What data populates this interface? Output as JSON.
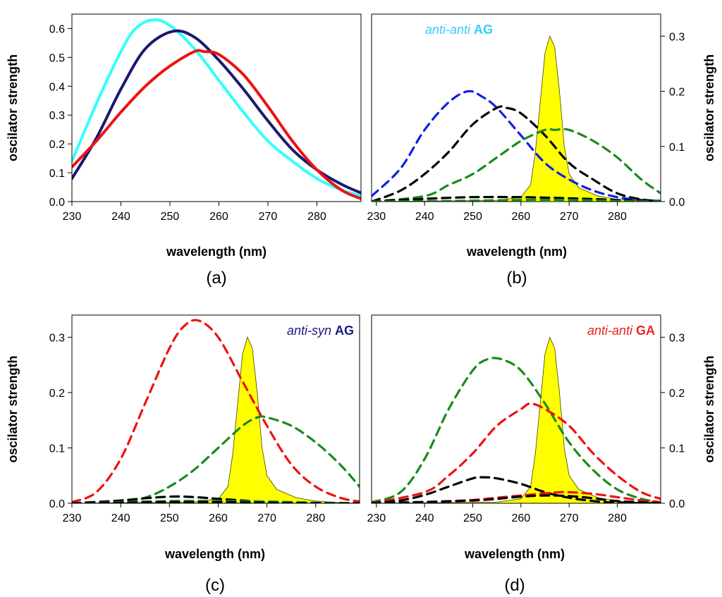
{
  "figure": {
    "panels": [
      {
        "id": "a",
        "label": "(a)",
        "xlabel": "wavelength (nm)",
        "ylabel": "oscilator strength",
        "y_axis_side": "left"
      },
      {
        "id": "b",
        "label": "(b)",
        "xlabel": "wavelength (nm)",
        "ylabel": "oscilator strength",
        "y_axis_side": "right",
        "annotation": {
          "italic": "anti-anti",
          "bold": "AG",
          "color": "#33ccff"
        }
      },
      {
        "id": "c",
        "label": "(c)",
        "xlabel": "wavelength (nm)",
        "ylabel": "oscilator strength",
        "y_axis_side": "left",
        "annotation": {
          "italic": "anti-syn",
          "bold": "AG",
          "color": "#1a1a80"
        }
      },
      {
        "id": "d",
        "label": "(d)",
        "xlabel": "wavelength (nm)",
        "ylabel": "oscilator strength",
        "y_axis_side": "right",
        "annotation": {
          "italic": "anti-anti",
          "bold": "GA",
          "color": "#ee2222"
        }
      }
    ]
  },
  "chart_data": [
    {
      "type": "line",
      "panel": "a",
      "xlabel": "wavelength (nm)",
      "ylabel": "oscilator strength",
      "xlim": [
        230,
        289
      ],
      "ylim": [
        0,
        0.65
      ],
      "xticks": [
        230,
        240,
        250,
        260,
        270,
        280
      ],
      "yticks": [
        "0.0",
        "0.1",
        "0.2",
        "0.3",
        "0.4",
        "0.5",
        "0.6"
      ],
      "series": [
        {
          "color": "#33ffff",
          "style": "solid",
          "x": [
            230,
            235,
            240,
            243,
            246.5,
            250,
            255,
            260,
            265,
            270,
            275,
            280,
            285,
            289
          ],
          "y": [
            0.14,
            0.34,
            0.52,
            0.6,
            0.63,
            0.61,
            0.53,
            0.42,
            0.31,
            0.21,
            0.14,
            0.08,
            0.04,
            0.02
          ]
        },
        {
          "color": "#1a1a6e",
          "style": "solid",
          "x": [
            230,
            235,
            240,
            245,
            250.5,
            255,
            260,
            265,
            270,
            275,
            280,
            285,
            289
          ],
          "y": [
            0.08,
            0.22,
            0.39,
            0.53,
            0.59,
            0.57,
            0.49,
            0.39,
            0.28,
            0.18,
            0.11,
            0.06,
            0.03
          ]
        },
        {
          "color": "#ee1111",
          "style": "solid",
          "x": [
            230,
            235,
            240,
            245,
            250,
            255,
            257,
            260,
            265,
            270,
            275,
            280,
            285,
            289
          ],
          "y": [
            0.12,
            0.21,
            0.31,
            0.4,
            0.47,
            0.52,
            0.52,
            0.51,
            0.44,
            0.33,
            0.21,
            0.11,
            0.04,
            0.01
          ]
        }
      ]
    },
    {
      "type": "line",
      "panel": "b",
      "xlabel": "wavelength (nm)",
      "ylabel": "oscilator strength",
      "xlim": [
        229,
        289
      ],
      "ylim": [
        0,
        0.34
      ],
      "xticks": [
        230,
        240,
        250,
        260,
        270,
        280
      ],
      "yticks": [
        "0.0",
        "0.1",
        "0.2",
        "0.3"
      ],
      "spectrum": {
        "color": "#ffff00",
        "x": [
          229,
          255,
          260,
          262,
          263,
          264,
          265,
          266,
          267,
          268,
          269,
          270,
          272,
          276,
          280,
          285,
          289
        ],
        "y": [
          0,
          0.002,
          0.008,
          0.03,
          0.09,
          0.18,
          0.27,
          0.3,
          0.28,
          0.2,
          0.1,
          0.05,
          0.025,
          0.01,
          0.004,
          0.001,
          0
        ]
      },
      "series": [
        {
          "color": "#1122dd",
          "style": "dashed",
          "x": [
            229,
            235,
            240,
            245,
            249,
            252,
            255,
            260,
            265,
            270,
            275,
            280,
            285,
            289
          ],
          "y": [
            0.01,
            0.06,
            0.13,
            0.18,
            0.2,
            0.19,
            0.17,
            0.12,
            0.07,
            0.04,
            0.02,
            0.008,
            0.003,
            0.001
          ]
        },
        {
          "color": "#000000",
          "style": "dashed",
          "x": [
            229,
            235,
            240,
            245,
            250,
            255,
            257,
            260,
            265,
            270,
            275,
            280,
            285,
            289
          ],
          "y": [
            0.0,
            0.02,
            0.05,
            0.09,
            0.14,
            0.17,
            0.17,
            0.16,
            0.12,
            0.07,
            0.04,
            0.015,
            0.004,
            0.001
          ]
        },
        {
          "color": "#1a8a1a",
          "style": "dashed",
          "x": [
            229,
            240,
            245,
            250,
            255,
            260,
            265,
            267,
            270,
            275,
            280,
            285,
            289
          ],
          "y": [
            0.0,
            0.01,
            0.03,
            0.05,
            0.08,
            0.11,
            0.13,
            0.13,
            0.13,
            0.11,
            0.08,
            0.04,
            0.015
          ]
        },
        {
          "color": "#000000",
          "style": "dashed",
          "x": [
            229,
            240,
            250,
            260,
            270,
            280,
            289
          ],
          "y": [
            0.0,
            0.005,
            0.008,
            0.008,
            0.006,
            0.003,
            0.0
          ]
        },
        {
          "color": "#1a8a1a",
          "style": "dashed",
          "x": [
            229,
            245,
            260,
            270,
            280,
            289
          ],
          "y": [
            0.0,
            0.001,
            0.003,
            0.003,
            0.001,
            0.0
          ]
        }
      ]
    },
    {
      "type": "line",
      "panel": "c",
      "xlabel": "wavelength (nm)",
      "ylabel": "oscilator strength",
      "xlim": [
        230,
        289
      ],
      "ylim": [
        0,
        0.34
      ],
      "xticks": [
        230,
        240,
        250,
        260,
        270,
        280
      ],
      "yticks": [
        "0.0",
        "0.1",
        "0.2",
        "0.3"
      ],
      "spectrum": {
        "color": "#ffff00",
        "x": [
          230,
          255,
          260,
          262,
          263,
          264,
          265,
          266,
          267,
          268,
          269,
          270,
          272,
          276,
          280,
          285,
          289
        ],
        "y": [
          0,
          0.002,
          0.008,
          0.03,
          0.09,
          0.18,
          0.27,
          0.3,
          0.28,
          0.2,
          0.1,
          0.05,
          0.025,
          0.01,
          0.004,
          0.001,
          0
        ]
      },
      "series": [
        {
          "color": "#ee1111",
          "style": "dashed",
          "x": [
            230,
            235,
            240,
            245,
            250,
            253,
            256,
            260,
            265,
            270,
            275,
            280,
            285,
            289
          ],
          "y": [
            0.002,
            0.02,
            0.08,
            0.18,
            0.28,
            0.32,
            0.33,
            0.3,
            0.22,
            0.14,
            0.07,
            0.03,
            0.01,
            0.003
          ]
        },
        {
          "color": "#1a8a1a",
          "style": "dashed",
          "x": [
            230,
            240,
            245,
            250,
            255,
            260,
            265,
            268,
            270,
            275,
            280,
            285,
            289
          ],
          "y": [
            0.0,
            0.002,
            0.01,
            0.03,
            0.06,
            0.1,
            0.14,
            0.155,
            0.155,
            0.14,
            0.11,
            0.07,
            0.03
          ]
        },
        {
          "color": "#000000",
          "style": "dashed",
          "x": [
            230,
            240,
            245,
            250,
            253,
            257,
            260,
            265,
            270,
            275,
            280,
            289
          ],
          "y": [
            0.0,
            0.005,
            0.009,
            0.012,
            0.012,
            0.01,
            0.008,
            0.005,
            0.002,
            0.001,
            0.0,
            0.0
          ]
        },
        {
          "color": "#1a8a1a",
          "style": "dashed",
          "x": [
            230,
            240,
            250,
            260,
            270,
            280,
            289
          ],
          "y": [
            0.0,
            0.002,
            0.004,
            0.004,
            0.003,
            0.001,
            0.0
          ]
        },
        {
          "color": "#000000",
          "style": "dashed",
          "x": [
            230,
            240,
            250,
            260,
            270,
            280,
            289
          ],
          "y": [
            0.0,
            0.001,
            0.002,
            0.002,
            0.001,
            0.0,
            0.0
          ]
        }
      ]
    },
    {
      "type": "line",
      "panel": "d",
      "xlabel": "wavelength (nm)",
      "ylabel": "oscilator strength",
      "xlim": [
        229,
        289
      ],
      "ylim": [
        0,
        0.34
      ],
      "xticks": [
        230,
        240,
        250,
        260,
        270,
        280
      ],
      "yticks": [
        "0.0",
        "0.1",
        "0.2",
        "0.3"
      ],
      "spectrum": {
        "color": "#ffff00",
        "x": [
          229,
          255,
          260,
          262,
          263,
          264,
          265,
          266,
          267,
          268,
          269,
          270,
          272,
          276,
          280,
          285,
          289
        ],
        "y": [
          0,
          0.002,
          0.008,
          0.03,
          0.09,
          0.18,
          0.27,
          0.3,
          0.28,
          0.2,
          0.1,
          0.05,
          0.025,
          0.01,
          0.004,
          0.001,
          0
        ]
      },
      "series": [
        {
          "color": "#1a8a1a",
          "style": "dashed",
          "x": [
            229,
            235,
            240,
            245,
            250,
            253,
            256,
            260,
            265,
            270,
            275,
            280,
            285,
            289
          ],
          "y": [
            0.002,
            0.02,
            0.08,
            0.17,
            0.24,
            0.26,
            0.26,
            0.24,
            0.18,
            0.11,
            0.06,
            0.025,
            0.008,
            0.002
          ]
        },
        {
          "color": "#ee1111",
          "style": "dashed",
          "x": [
            229,
            240,
            245,
            250,
            255,
            260,
            262,
            265,
            270,
            275,
            280,
            285,
            289
          ],
          "y": [
            0.0,
            0.02,
            0.05,
            0.09,
            0.14,
            0.17,
            0.18,
            0.17,
            0.14,
            0.09,
            0.05,
            0.02,
            0.008
          ]
        },
        {
          "color": "#000000",
          "style": "dashed",
          "x": [
            229,
            235,
            240,
            245,
            250,
            252,
            255,
            260,
            265,
            270,
            275,
            280,
            289
          ],
          "y": [
            0.0,
            0.005,
            0.015,
            0.03,
            0.045,
            0.047,
            0.045,
            0.035,
            0.02,
            0.01,
            0.004,
            0.001,
            0.0
          ]
        },
        {
          "color": "#ee1111",
          "style": "dashed",
          "x": [
            229,
            240,
            250,
            255,
            260,
            265,
            268,
            270,
            275,
            280,
            285,
            289
          ],
          "y": [
            0.0,
            0.002,
            0.006,
            0.01,
            0.014,
            0.018,
            0.02,
            0.02,
            0.017,
            0.011,
            0.005,
            0.002
          ]
        },
        {
          "color": "#000000",
          "style": "dashed",
          "x": [
            229,
            250,
            260,
            265,
            270,
            275,
            280,
            289
          ],
          "y": [
            0.0,
            0.005,
            0.012,
            0.014,
            0.013,
            0.009,
            0.004,
            0.0
          ]
        }
      ]
    }
  ]
}
